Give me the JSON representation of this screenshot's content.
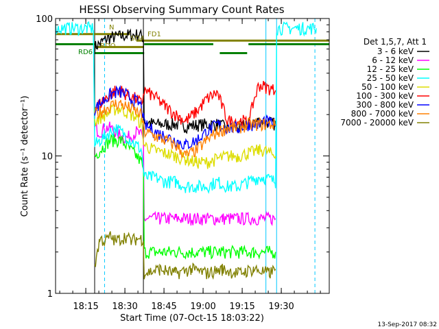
{
  "chart_data": {
    "type": "line",
    "title": "HESSI Observing Summary Count Rates",
    "xlabel": "Start Time (07-Oct-15 18:03:22)",
    "ylabel": "Count Rate (s⁻¹ detector⁻¹)",
    "x_unit": "minutes after 18:03:22",
    "xlim": [
      0,
      105
    ],
    "ylim": [
      1,
      100
    ],
    "yscale": "log",
    "x_ticks": [
      {
        "x": 11.6,
        "label": "18:15"
      },
      {
        "x": 26.6,
        "label": "18:30"
      },
      {
        "x": 41.6,
        "label": "18:45"
      },
      {
        "x": 56.6,
        "label": "19:00"
      },
      {
        "x": 71.6,
        "label": "19:15"
      },
      {
        "x": 86.6,
        "label": "19:30"
      }
    ],
    "y_ticks": [
      {
        "y": 1,
        "label": "1"
      },
      {
        "y": 10,
        "label": "10"
      },
      {
        "y": 100,
        "label": "100"
      }
    ],
    "legend_title": "Det 1,5,7, Att 1",
    "legend_position": "right",
    "timestamp": "13-Sep-2017 08:32",
    "flag_labels": {
      "fd1": "FD1",
      "rdo": "RDO",
      "rd6": "RD6",
      "n": "N",
      "sd4": "SD4"
    },
    "series": [
      {
        "name": "3 - 6 keV",
        "color": "#000000",
        "x": [
          15.0,
          18,
          20,
          22,
          24,
          26,
          28,
          30,
          32,
          33.7,
          34,
          38,
          42,
          46,
          50,
          54,
          58,
          62,
          66,
          70,
          74,
          78,
          80,
          84.4
        ],
        "y": [
          62,
          68,
          72,
          73,
          74,
          75,
          76,
          76,
          77,
          72,
          18,
          17,
          17,
          17,
          16.5,
          16.8,
          17,
          17,
          16,
          16,
          17,
          18,
          18,
          17
        ]
      },
      {
        "name": "6 - 12 keV",
        "color": "#ff00ff",
        "x": [
          15.0,
          17,
          19,
          21,
          23,
          25,
          27,
          29,
          31,
          33,
          33.7,
          34,
          40,
          46,
          52,
          58,
          64,
          70,
          76,
          82,
          84.4
        ],
        "y": [
          16,
          15,
          16,
          16,
          15,
          14,
          13.5,
          14,
          15,
          14,
          13,
          3.5,
          3.5,
          3.5,
          3.5,
          3.5,
          3.5,
          3.5,
          3.5,
          3.5,
          3.5
        ]
      },
      {
        "name": "12 - 25 keV",
        "color": "#00ff00",
        "x": [
          15.0,
          17,
          19,
          21,
          23,
          25,
          27,
          29,
          31,
          33,
          33.7,
          34,
          40,
          46,
          52,
          58,
          64,
          70,
          76,
          82,
          84.4
        ],
        "y": [
          10,
          11,
          12,
          13,
          13,
          13,
          12,
          11,
          10,
          9,
          8,
          2,
          2,
          2,
          2,
          2,
          2,
          2,
          2,
          2,
          2
        ]
      },
      {
        "name": "25 - 50 keV",
        "color": "#00ffff",
        "x": [
          0,
          6,
          12,
          14.5,
          15.0,
          17,
          19,
          21,
          23,
          25,
          27,
          29,
          31,
          33,
          34,
          38,
          42,
          46,
          50,
          54,
          58,
          62,
          66,
          70,
          74,
          78,
          80,
          84.4,
          84.8,
          90,
          95,
          100
        ],
        "y": [
          85,
          85,
          85,
          85,
          12,
          13,
          14,
          15,
          16,
          15,
          14,
          13,
          12,
          11,
          7,
          7,
          6.5,
          6.5,
          6,
          6,
          6,
          6.5,
          6,
          6,
          6.5,
          7,
          7,
          6.5,
          85,
          85,
          85,
          85
        ]
      },
      {
        "name": "50 - 100 keV",
        "color": "#dddd00",
        "x": [
          15.0,
          17,
          19,
          21,
          23,
          25,
          27,
          29,
          31,
          33,
          34,
          38,
          42,
          46,
          50,
          54,
          58,
          62,
          66,
          70,
          74,
          78,
          80,
          84.4
        ],
        "y": [
          18,
          19,
          20,
          21,
          22,
          22,
          21,
          20,
          19,
          17,
          12,
          11,
          10.5,
          10,
          9.5,
          9,
          9,
          9.5,
          10,
          10,
          10.5,
          11,
          11,
          10
        ]
      },
      {
        "name": "100 - 300 keV",
        "color": "#ff0000",
        "x": [
          15.0,
          17,
          19,
          21,
          23,
          25,
          27,
          29,
          31,
          33,
          34,
          38,
          42,
          46,
          50,
          54,
          58,
          62,
          66,
          68,
          70,
          72,
          74,
          76,
          78,
          80,
          82,
          84.4
        ],
        "y": [
          22,
          24,
          26,
          28,
          30,
          30,
          28,
          27,
          26,
          24,
          30,
          27,
          23,
          20,
          18,
          21,
          26,
          29,
          18,
          18,
          18,
          18,
          17,
          25,
          33,
          32,
          31,
          30
        ]
      },
      {
        "name": "300 - 800 keV",
        "color": "#0000ff",
        "x": [
          15.0,
          17,
          19,
          21,
          23,
          25,
          27,
          29,
          31,
          33,
          34,
          38,
          42,
          46,
          50,
          54,
          58,
          62,
          66,
          70,
          74,
          78,
          80,
          84.4
        ],
        "y": [
          22,
          24,
          26,
          28,
          29,
          29,
          28,
          26,
          25,
          23,
          17,
          15,
          14,
          13,
          12,
          13,
          15,
          17,
          16,
          16,
          17,
          17,
          18,
          17
        ]
      },
      {
        "name": "800 - 7000 keV",
        "color": "#ff8000",
        "x": [
          15.0,
          17,
          19,
          21,
          23,
          25,
          27,
          29,
          31,
          33,
          34,
          38,
          42,
          46,
          50,
          54,
          58,
          62,
          66,
          70,
          74,
          78,
          80,
          84.4
        ],
        "y": [
          20,
          21,
          22,
          23,
          24,
          24,
          23,
          22,
          21,
          20,
          15,
          14,
          13,
          12,
          10,
          11,
          13,
          15,
          16,
          16,
          17,
          17,
          17,
          17
        ]
      },
      {
        "name": "7000 - 20000 keV",
        "color": "#808000",
        "x": [
          15.0,
          17,
          19,
          21,
          23,
          25,
          27,
          29,
          31,
          33,
          33.7,
          34,
          40,
          46,
          52,
          58,
          64,
          70,
          76,
          82,
          84.4
        ],
        "y": [
          1.6,
          2.5,
          2.4,
          2.6,
          2.4,
          2.5,
          2.6,
          2.4,
          2.5,
          2.5,
          2.4,
          1.4,
          1.5,
          1.4,
          1.5,
          1.4,
          1.5,
          1.4,
          1.5,
          1.4,
          1.5
        ]
      }
    ],
    "flags": [
      {
        "name": "fd1",
        "color": "#808000",
        "segments": [
          [
            0,
            28.5
          ],
          [
            31.0,
            105
          ]
        ],
        "levels": [
          77,
          69
        ]
      },
      {
        "name": "rdo",
        "color": "#808000",
        "segments": [
          [
            15.0,
            33.7
          ]
        ],
        "levels": [
          62
        ]
      },
      {
        "name": "rd6",
        "color": "#008000",
        "segments": [
          [
            0,
            15.0
          ],
          [
            15.0,
            34.0
          ],
          [
            34.0,
            60.5
          ],
          [
            63.0,
            73.5
          ],
          [
            74.0,
            105
          ]
        ],
        "levels": [
          65,
          56,
          65,
          56,
          65
        ]
      }
    ],
    "markers": [
      {
        "x": 15.0,
        "color": "#000000",
        "style": "solid"
      },
      {
        "x": 33.7,
        "color": "#000000",
        "style": "solid"
      },
      {
        "x": 18.8,
        "color": "#00c8ff",
        "style": "dashed"
      },
      {
        "x": 80.7,
        "color": "#00c8ff",
        "style": "solid"
      },
      {
        "x": 84.8,
        "color": "#00c8ff",
        "style": "solid"
      },
      {
        "x": 99.5,
        "color": "#00c8ff",
        "style": "dashed"
      }
    ]
  }
}
